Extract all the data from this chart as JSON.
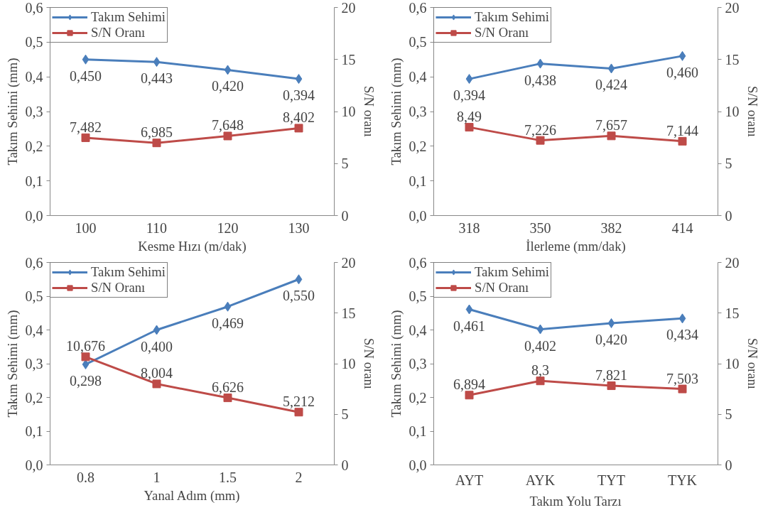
{
  "chart_data": [
    {
      "type": "line",
      "categories": [
        "100",
        "110",
        "120",
        "130"
      ],
      "xlabel": "Kesme Hızı (m/dak)",
      "ylabel": "Takım Sehimi (mm)",
      "y2label": "S/N oranı",
      "legend": "top left",
      "ylim": [
        0,
        0.6
      ],
      "yticks": [
        {
          "value": 0,
          "label": "0,0"
        },
        {
          "value": 0.1,
          "label": "0,1"
        },
        {
          "value": 0.2,
          "label": "0,2"
        },
        {
          "value": 0.3,
          "label": "0,3"
        },
        {
          "value": 0.4,
          "label": "0,4"
        },
        {
          "value": 0.5,
          "label": "0,5"
        },
        {
          "value": 0.6,
          "label": "0,6"
        }
      ],
      "y2lim": [
        0,
        20
      ],
      "y2ticks": [
        0,
        5,
        10,
        15,
        20
      ],
      "series": [
        {
          "name": "Takım Sehimi",
          "color": "#4a7ebb",
          "marker": "diamond",
          "values": [
            0.45,
            0.443,
            0.42,
            0.394
          ],
          "value_labels": [
            "0,450",
            "0,443",
            "0,420",
            "0,394"
          ]
        },
        {
          "name": "S/N Oranı",
          "color": "#be4b48",
          "marker": "square",
          "axis": "y2",
          "values": [
            7.482,
            6.985,
            7.648,
            8.402
          ],
          "value_labels": [
            "7,482",
            "6,985",
            "7,648",
            "8,402"
          ]
        }
      ]
    },
    {
      "type": "line",
      "categories": [
        "318",
        "350",
        "382",
        "414"
      ],
      "xlabel": "İlerleme (mm/dak)",
      "ylabel": "Takım Sehimi (mm)",
      "y2label": "S/N oranı",
      "legend": "top left",
      "ylim": [
        0,
        0.6
      ],
      "yticks": [
        {
          "value": 0,
          "label": "0,0"
        },
        {
          "value": 0.1,
          "label": "0,1"
        },
        {
          "value": 0.2,
          "label": "0,2"
        },
        {
          "value": 0.3,
          "label": "0,3"
        },
        {
          "value": 0.4,
          "label": "0,4"
        },
        {
          "value": 0.5,
          "label": "0,5"
        },
        {
          "value": 0.6,
          "label": "0,6"
        }
      ],
      "y2lim": [
        0,
        20
      ],
      "y2ticks": [
        0,
        5,
        10,
        15,
        20
      ],
      "series": [
        {
          "name": "Takım Sehimi",
          "color": "#4a7ebb",
          "marker": "diamond",
          "values": [
            0.394,
            0.438,
            0.424,
            0.46
          ],
          "value_labels": [
            "0,394",
            "0,438",
            "0,424",
            "0,460"
          ]
        },
        {
          "name": "S/N Oranı",
          "color": "#be4b48",
          "marker": "square",
          "axis": "y2",
          "values": [
            8.49,
            7.226,
            7.657,
            7.144
          ],
          "value_labels": [
            "8,49",
            "7,226",
            "7,657",
            "7,144"
          ]
        }
      ]
    },
    {
      "type": "line",
      "categories": [
        "0.8",
        "1",
        "1.5",
        "2"
      ],
      "xlabel": "Yanal Adım (mm)",
      "ylabel": "Takım Sehimi (mm)",
      "y2label": "S/N oranı",
      "legend": "top left",
      "ylim": [
        0,
        0.6
      ],
      "yticks": [
        {
          "value": 0,
          "label": "0,0"
        },
        {
          "value": 0.1,
          "label": "0,1"
        },
        {
          "value": 0.2,
          "label": "0,2"
        },
        {
          "value": 0.3,
          "label": "0,3"
        },
        {
          "value": 0.4,
          "label": "0,4"
        },
        {
          "value": 0.5,
          "label": "0,5"
        },
        {
          "value": 0.6,
          "label": "0,6"
        }
      ],
      "y2lim": [
        0,
        20
      ],
      "y2ticks": [
        0,
        5,
        10,
        15,
        20
      ],
      "series": [
        {
          "name": "Takım Sehimi",
          "color": "#4a7ebb",
          "marker": "diamond",
          "values": [
            0.298,
            0.4,
            0.469,
            0.55
          ],
          "value_labels": [
            "0,298",
            "0,400",
            "0,469",
            "0,550"
          ]
        },
        {
          "name": "S/N Oranı",
          "color": "#be4b48",
          "marker": "square",
          "axis": "y2",
          "values": [
            10.676,
            8.004,
            6.626,
            5.212
          ],
          "value_labels": [
            "10,676",
            "8,004",
            "6,626",
            "5,212"
          ]
        }
      ]
    },
    {
      "type": "line",
      "categories": [
        "AYT",
        "AYK",
        "TYT",
        "TYK"
      ],
      "xlabel": "Takım Yolu Tarzı",
      "ylabel": "Takım Sehimi (mm)",
      "y2label": "S/N oranı",
      "legend": "top left",
      "ylim": [
        0,
        0.6
      ],
      "yticks": [
        {
          "value": 0,
          "label": "0,0"
        },
        {
          "value": 0.1,
          "label": "0,1"
        },
        {
          "value": 0.2,
          "label": "0,2"
        },
        {
          "value": 0.3,
          "label": "0,3"
        },
        {
          "value": 0.4,
          "label": "0,4"
        },
        {
          "value": 0.5,
          "label": "0,5"
        },
        {
          "value": 0.6,
          "label": "0,6"
        }
      ],
      "y2lim": [
        0,
        20
      ],
      "y2ticks": [
        0,
        5,
        10,
        15,
        20
      ],
      "series": [
        {
          "name": "Takım Sehimi",
          "color": "#4a7ebb",
          "marker": "diamond",
          "values": [
            0.461,
            0.402,
            0.42,
            0.434
          ],
          "value_labels": [
            "0,461",
            "0,402",
            "0,420",
            "0,434"
          ]
        },
        {
          "name": "S/N Oranı",
          "color": "#be4b48",
          "marker": "square",
          "axis": "y2",
          "values": [
            6.894,
            8.3,
            7.821,
            7.503
          ],
          "value_labels": [
            "6,894",
            "8,3",
            "7,821",
            "7,503"
          ]
        }
      ]
    }
  ]
}
